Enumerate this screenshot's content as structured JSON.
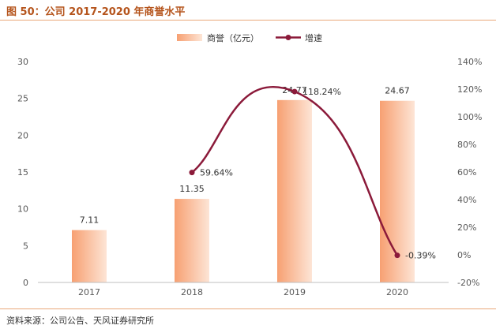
{
  "title": "图 50：公司 2017-2020 年商誉水平",
  "source": "资料来源：公司公告、天风证券研究所",
  "colors": {
    "bar_light": "#fde5d6",
    "bar_dark": "#f7a072",
    "line": "#8b1a3a",
    "rule": "#e9a77a",
    "axis_text": "#595959"
  },
  "chart_data": {
    "type": "bar",
    "categories": [
      "2017",
      "2018",
      "2019",
      "2020"
    ],
    "series": [
      {
        "name": "商誉（亿元）",
        "kind": "bar",
        "axis": "left",
        "values": [
          7.11,
          11.35,
          24.77,
          24.67
        ],
        "labels": [
          "7.11",
          "11.35",
          "24.77",
          "24.67"
        ]
      },
      {
        "name": "增速",
        "kind": "line",
        "axis": "right",
        "values": [
          null,
          59.64,
          118.24,
          -0.39
        ],
        "labels": [
          "",
          "59.64%",
          "118.24%",
          "-0.39%"
        ]
      }
    ],
    "ylim_left": [
      0,
      30
    ],
    "yticks_left": [
      "0",
      "5",
      "10",
      "15",
      "20",
      "25",
      "30"
    ],
    "ylim_right": [
      -20,
      140
    ],
    "yticks_right": [
      "-20%",
      "0%",
      "20%",
      "40%",
      "60%",
      "80%",
      "100%",
      "120%",
      "140%"
    ],
    "legend_position": "top-center"
  }
}
